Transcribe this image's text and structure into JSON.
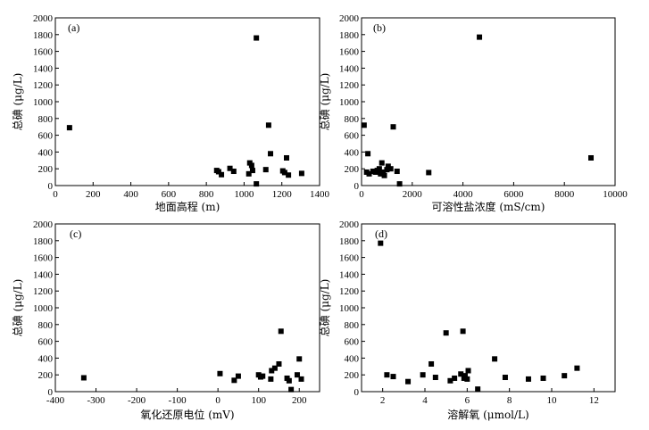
{
  "chart_data": [
    {
      "type": "scatter",
      "panel_label": "(a)",
      "xlabel": "地面高程 (m)",
      "ylabel": "总碘 (μg/L)",
      "xlim": [
        0,
        1400
      ],
      "ylim": [
        0,
        2000
      ],
      "xticks": [
        0,
        200,
        400,
        600,
        800,
        1000,
        1200,
        1400
      ],
      "yticks": [
        0,
        200,
        400,
        600,
        800,
        1000,
        1200,
        1400,
        1600,
        1800,
        2000
      ],
      "points": [
        {
          "x": 75,
          "y": 690
        },
        {
          "x": 855,
          "y": 180
        },
        {
          "x": 865,
          "y": 165
        },
        {
          "x": 880,
          "y": 130
        },
        {
          "x": 925,
          "y": 205
        },
        {
          "x": 945,
          "y": 170
        },
        {
          "x": 1025,
          "y": 140
        },
        {
          "x": 1030,
          "y": 270
        },
        {
          "x": 1040,
          "y": 240
        },
        {
          "x": 1045,
          "y": 180
        },
        {
          "x": 1065,
          "y": 1760
        },
        {
          "x": 1065,
          "y": 20
        },
        {
          "x": 1115,
          "y": 190
        },
        {
          "x": 1130,
          "y": 720
        },
        {
          "x": 1140,
          "y": 380
        },
        {
          "x": 1205,
          "y": 175
        },
        {
          "x": 1215,
          "y": 155
        },
        {
          "x": 1225,
          "y": 330
        },
        {
          "x": 1235,
          "y": 125
        },
        {
          "x": 1305,
          "y": 145
        }
      ]
    },
    {
      "type": "scatter",
      "panel_label": "(b)",
      "xlabel": "可溶性盐浓度 (mS/cm)",
      "ylabel": "总碘 (μg/L)",
      "xlim": [
        0,
        10000
      ],
      "ylim": [
        0,
        2000
      ],
      "xticks": [
        0,
        2000,
        4000,
        6000,
        8000,
        10000
      ],
      "yticks": [
        0,
        200,
        400,
        600,
        800,
        1000,
        1200,
        1400,
        1600,
        1800,
        2000
      ],
      "points": [
        {
          "x": 100,
          "y": 720
        },
        {
          "x": 200,
          "y": 160
        },
        {
          "x": 250,
          "y": 380
        },
        {
          "x": 300,
          "y": 140
        },
        {
          "x": 450,
          "y": 170
        },
        {
          "x": 550,
          "y": 160
        },
        {
          "x": 620,
          "y": 180
        },
        {
          "x": 700,
          "y": 200
        },
        {
          "x": 750,
          "y": 140
        },
        {
          "x": 800,
          "y": 270
        },
        {
          "x": 850,
          "y": 160
        },
        {
          "x": 900,
          "y": 120
        },
        {
          "x": 1000,
          "y": 190
        },
        {
          "x": 1050,
          "y": 230
        },
        {
          "x": 1150,
          "y": 200
        },
        {
          "x": 1250,
          "y": 700
        },
        {
          "x": 1400,
          "y": 170
        },
        {
          "x": 1500,
          "y": 20
        },
        {
          "x": 2650,
          "y": 155
        },
        {
          "x": 4650,
          "y": 1770
        },
        {
          "x": 9050,
          "y": 330
        }
      ]
    },
    {
      "type": "scatter",
      "panel_label": "(c)",
      "xlabel": "氧化还原电位 (mV)",
      "ylabel": "总碘 (μg/L)",
      "xlim": [
        -400,
        250
      ],
      "ylim": [
        0,
        2000
      ],
      "xticks": [
        -400,
        -300,
        -200,
        -100,
        0,
        100,
        200
      ],
      "yticks": [
        0,
        200,
        400,
        600,
        800,
        1000,
        1200,
        1400,
        1600,
        1800,
        2000
      ],
      "points": [
        {
          "x": -330,
          "y": 165
        },
        {
          "x": 5,
          "y": 215
        },
        {
          "x": 40,
          "y": 135
        },
        {
          "x": 50,
          "y": 185
        },
        {
          "x": 100,
          "y": 200
        },
        {
          "x": 105,
          "y": 175
        },
        {
          "x": 110,
          "y": 185
        },
        {
          "x": 130,
          "y": 150
        },
        {
          "x": 132,
          "y": 250
        },
        {
          "x": 140,
          "y": 280
        },
        {
          "x": 150,
          "y": 330
        },
        {
          "x": 155,
          "y": 720
        },
        {
          "x": 170,
          "y": 160
        },
        {
          "x": 175,
          "y": 130
        },
        {
          "x": 180,
          "y": 25
        },
        {
          "x": 195,
          "y": 200
        },
        {
          "x": 200,
          "y": 390
        },
        {
          "x": 205,
          "y": 150
        }
      ]
    },
    {
      "type": "scatter",
      "panel_label": "(d)",
      "xlabel": "溶解氧 (μmol/L)",
      "ylabel": "总碘 (μg/L)",
      "xlim": [
        1,
        13
      ],
      "ylim": [
        0,
        2000
      ],
      "xticks": [
        2,
        4,
        6,
        8,
        10,
        12
      ],
      "yticks": [
        0,
        200,
        400,
        600,
        800,
        1000,
        1200,
        1400,
        1600,
        1800,
        2000
      ],
      "points": [
        {
          "x": 1.9,
          "y": 1770
        },
        {
          "x": 2.2,
          "y": 200
        },
        {
          "x": 2.5,
          "y": 180
        },
        {
          "x": 3.2,
          "y": 120
        },
        {
          "x": 3.9,
          "y": 200
        },
        {
          "x": 4.3,
          "y": 330
        },
        {
          "x": 4.5,
          "y": 170
        },
        {
          "x": 5.0,
          "y": 700
        },
        {
          "x": 5.2,
          "y": 130
        },
        {
          "x": 5.4,
          "y": 160
        },
        {
          "x": 5.7,
          "y": 210
        },
        {
          "x": 5.8,
          "y": 720
        },
        {
          "x": 5.85,
          "y": 160
        },
        {
          "x": 5.9,
          "y": 190
        },
        {
          "x": 6.0,
          "y": 150
        },
        {
          "x": 6.05,
          "y": 250
        },
        {
          "x": 6.5,
          "y": 30
        },
        {
          "x": 7.3,
          "y": 390
        },
        {
          "x": 7.8,
          "y": 170
        },
        {
          "x": 8.9,
          "y": 150
        },
        {
          "x": 9.6,
          "y": 160
        },
        {
          "x": 10.6,
          "y": 190
        },
        {
          "x": 11.2,
          "y": 280
        }
      ]
    }
  ]
}
